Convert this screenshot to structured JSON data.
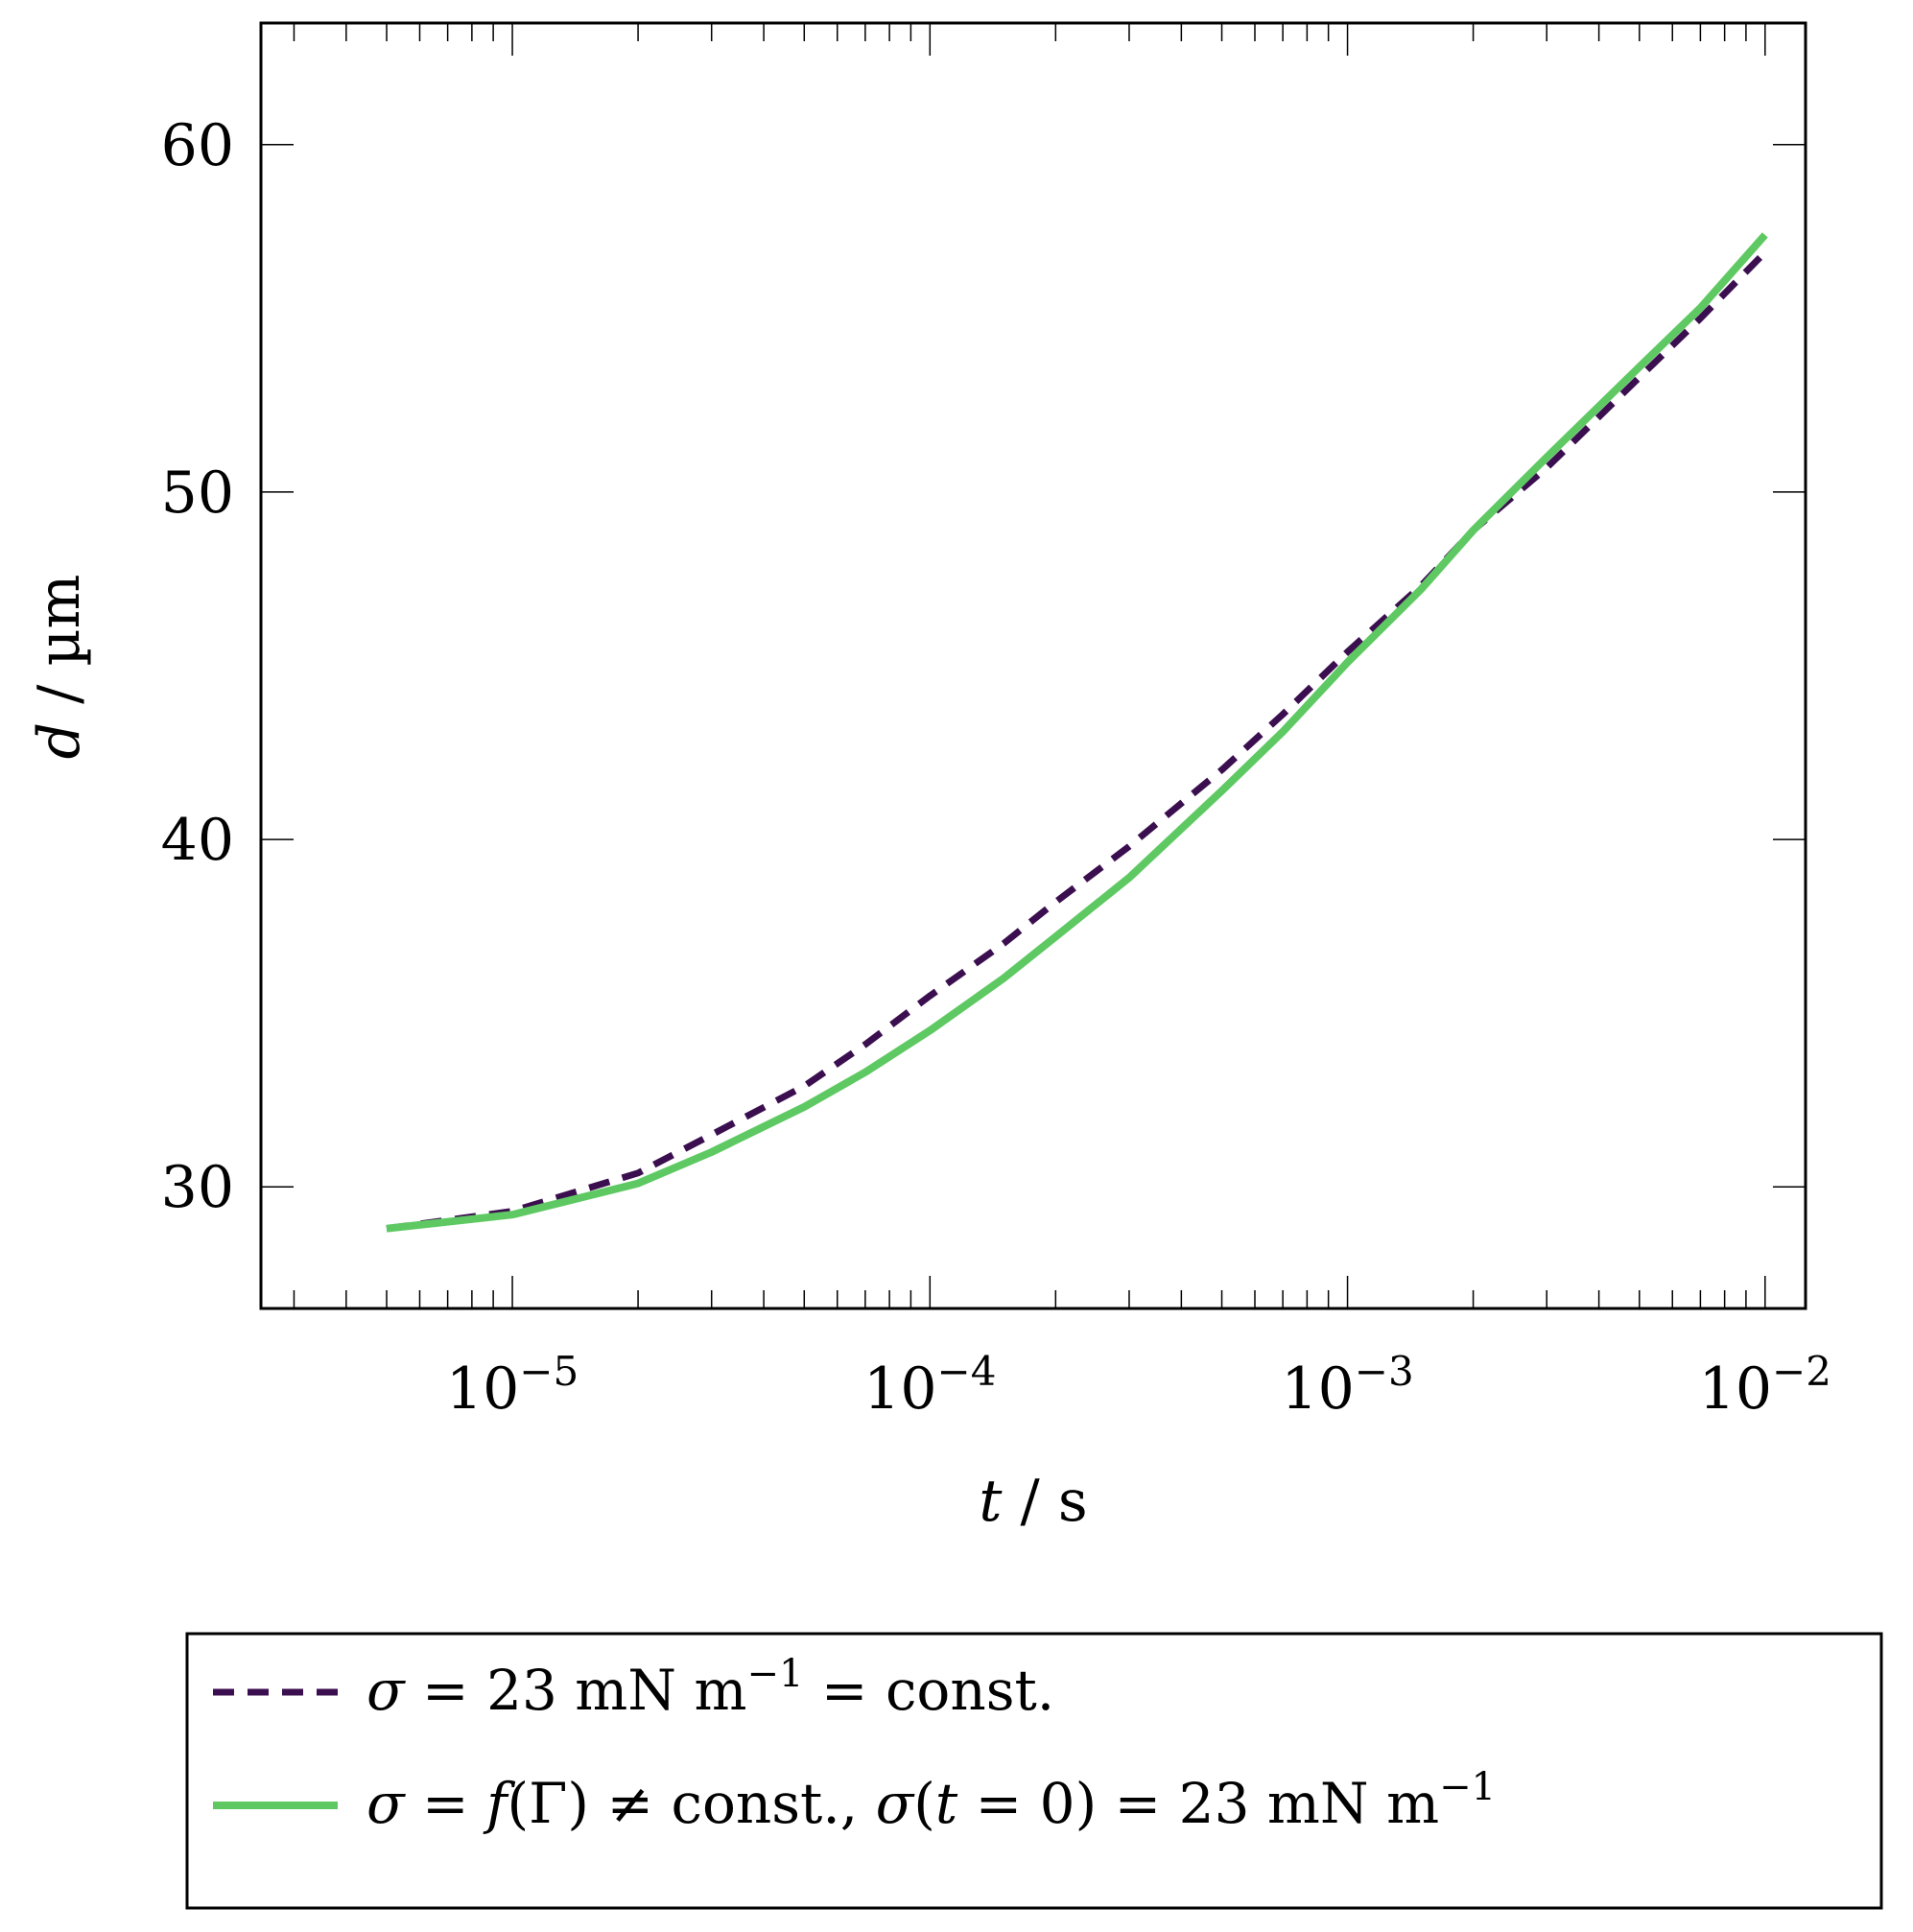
{
  "chart_data": {
    "type": "line",
    "x_scale": "log",
    "xlim": [
      2.5e-06,
      0.0125
    ],
    "ylim": [
      26.5,
      63.5
    ],
    "grid": false,
    "legend_position": "bottom-outside",
    "x_ticks": [
      {
        "value": 1e-05,
        "base": "10",
        "exp": "−5"
      },
      {
        "value": 0.0001,
        "base": "10",
        "exp": "−4"
      },
      {
        "value": 0.001,
        "base": "10",
        "exp": "−3"
      },
      {
        "value": 0.01,
        "base": "10",
        "exp": "−2"
      }
    ],
    "y_ticks": [
      30,
      40,
      50,
      60
    ],
    "xlabel": {
      "var": "t",
      "unit": " / s"
    },
    "ylabel": {
      "var": "d",
      "unit": " / µm"
    },
    "series": [
      {
        "name": "σ = 23 mN m⁻¹ = const.",
        "color": "#3b0f4f",
        "style": "dashed",
        "x": [
          5e-06,
          1e-05,
          2e-05,
          3e-05,
          5e-05,
          7e-05,
          0.0001,
          0.00015,
          0.0002,
          0.0003,
          0.0005,
          0.0007,
          0.001,
          0.0015,
          0.002,
          0.003,
          0.005,
          0.007,
          0.01
        ],
        "y": [
          28.8,
          29.3,
          30.4,
          31.5,
          32.9,
          34.1,
          35.5,
          37.0,
          38.2,
          39.8,
          42.0,
          43.6,
          45.4,
          47.3,
          48.9,
          50.7,
          53.3,
          55.0,
          56.9
        ]
      },
      {
        "name": "σ = f(Γ) ≠ const., σ(t = 0) = 23 mN m⁻¹",
        "color": "#5ec962",
        "style": "solid",
        "x": [
          5e-06,
          1e-05,
          2e-05,
          3e-05,
          5e-05,
          7e-05,
          0.0001,
          0.00015,
          0.0002,
          0.0003,
          0.0005,
          0.0007,
          0.001,
          0.0015,
          0.002,
          0.003,
          0.005,
          0.007,
          0.01
        ],
        "y": [
          28.8,
          29.2,
          30.1,
          31.0,
          32.3,
          33.3,
          34.5,
          36.0,
          37.2,
          38.9,
          41.4,
          43.1,
          45.1,
          47.2,
          48.9,
          51.0,
          53.6,
          55.3,
          57.4
        ]
      }
    ]
  },
  "legend": {
    "items": [
      {
        "parts": [
          {
            "t": "σ",
            "i": true
          },
          {
            "t": " = 23 mN m"
          },
          {
            "t": "−1",
            "sup": true
          },
          {
            "t": " = const."
          }
        ]
      },
      {
        "parts": [
          {
            "t": "σ",
            "i": true
          },
          {
            "t": " = "
          },
          {
            "t": "f",
            "i": true
          },
          {
            "t": "(Γ) ≠ const., "
          },
          {
            "t": "σ",
            "i": true
          },
          {
            "t": "("
          },
          {
            "t": "t",
            "i": true
          },
          {
            "t": " = 0) = 23 mN m"
          },
          {
            "t": "−1",
            "sup": true
          }
        ]
      }
    ]
  }
}
